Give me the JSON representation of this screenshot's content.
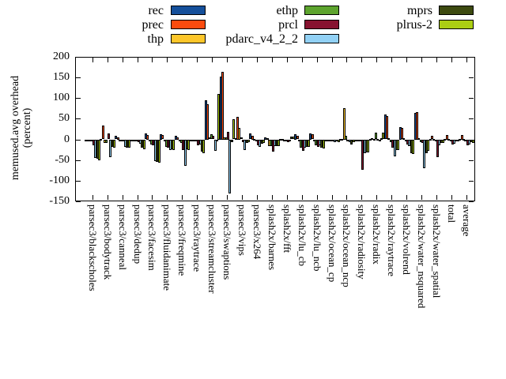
{
  "legend": {
    "columns": [
      [
        {
          "name": "rec",
          "color": "#15509b"
        },
        {
          "name": "prec",
          "color": "#fb4b0f"
        },
        {
          "name": "thp",
          "color": "#fdc62a"
        }
      ],
      [
        {
          "name": "ethp",
          "color": "#5da42e"
        },
        {
          "name": "prcl",
          "color": "#871330"
        },
        {
          "name": "pdarc_v4_2_2",
          "color": "#92d1f5"
        }
      ],
      [
        {
          "name": "mprs",
          "color": "#3d4a10"
        },
        {
          "name": "plrus-2",
          "color": "#abce14"
        }
      ]
    ]
  },
  "axes": {
    "ylabel_line1": "memused.avg overhead",
    "ylabel_line2": "(percent)"
  },
  "chart_data": {
    "type": "bar",
    "title": "",
    "xlabel": "",
    "ylabel": "memused.avg overhead (percent)",
    "ylim": [
      -150,
      200
    ],
    "yticks": [
      200,
      150,
      100,
      50,
      0,
      -50,
      -100,
      -150
    ],
    "grid": false,
    "legend_position": "top",
    "categories": [
      "parsec3/blackscholes",
      "parsec3/bodytrack",
      "parsec3/canneal",
      "parsec3/dedup",
      "parsec3/facesim",
      "parsec3/fluidanimate",
      "parsec3/freqmine",
      "parsec3/raytrace",
      "parsec3/streamcluster",
      "parsec3/swaptions",
      "parsec3/vips",
      "parsec3/x264",
      "splash2x/barnes",
      "splash2x/fft",
      "splash2x/lu_cb",
      "splash2x/lu_ncb",
      "splash2x/ocean_cp",
      "splash2x/ocean_ncp",
      "splash2x/radiosity",
      "splash2x/radix",
      "splash2x/raytrace",
      "splash2x/volrend",
      "splash2x/water_nsquared",
      "splash2x/water_spatial",
      "total",
      "average"
    ],
    "series": [
      {
        "name": "rec",
        "color": "#15509b",
        "values": [
          -1,
          2,
          8,
          -1,
          14,
          13,
          9,
          -1,
          95,
          153,
          3,
          14,
          5,
          2,
          13,
          15,
          -2,
          2,
          -3,
          2,
          60,
          30,
          65,
          2,
          2,
          2
        ]
      },
      {
        "name": "prec",
        "color": "#fb4b0f",
        "values": [
          -2,
          33,
          5,
          -1,
          11,
          10,
          5,
          -2,
          86,
          164,
          55,
          9,
          3,
          2,
          8,
          12,
          -2,
          2,
          -3,
          3,
          56,
          27,
          67,
          8,
          11,
          11
        ]
      },
      {
        "name": "thp",
        "color": "#fdc62a",
        "values": [
          -2,
          -8,
          -2,
          -2,
          -2,
          -2,
          -2,
          -2,
          4,
          5,
          28,
          2,
          -15,
          -2,
          -3,
          -3,
          -3,
          76,
          -4,
          2,
          3,
          3,
          3,
          2,
          2,
          2
        ]
      },
      {
        "name": "ethp",
        "color": "#5da42e",
        "values": [
          -3,
          -8,
          -2,
          -4,
          -12,
          -18,
          -8,
          -4,
          12,
          5,
          4,
          -3,
          -15,
          -3,
          -20,
          -14,
          -3,
          9,
          -4,
          16,
          -5,
          -3,
          -5,
          -3,
          -3,
          -2
        ]
      },
      {
        "name": "prcl",
        "color": "#871330",
        "values": [
          -14,
          14,
          -3,
          -6,
          -14,
          -20,
          -24,
          -14,
          8,
          19,
          -6,
          -13,
          -29,
          -6,
          -26,
          -18,
          -4,
          -4,
          -73,
          2,
          -20,
          -12,
          -8,
          -43,
          -12,
          -14
        ]
      },
      {
        "name": "pdarc_v4_2_2",
        "color": "#92d1f5",
        "values": [
          -44,
          -42,
          -18,
          -10,
          -52,
          -24,
          -63,
          -12,
          -26,
          -131,
          -24,
          -17,
          -15,
          -4,
          -20,
          -14,
          -5,
          -5,
          -33,
          -3,
          -40,
          -16,
          -69,
          -13,
          -10,
          -12
        ]
      },
      {
        "name": "mprs",
        "color": "#3d4a10",
        "values": [
          -46,
          -18,
          -20,
          -20,
          -54,
          -22,
          -22,
          -29,
          -4,
          -5,
          -8,
          -10,
          -15,
          6,
          -18,
          -20,
          -4,
          -11,
          -31,
          3,
          -24,
          -32,
          -32,
          -8,
          -4,
          -6
        ]
      },
      {
        "name": "plrus-2",
        "color": "#abce14",
        "values": [
          -50,
          -20,
          -19,
          -22,
          -56,
          -24,
          -24,
          -33,
          110,
          48,
          -6,
          -8,
          -15,
          6,
          -18,
          -21,
          -5,
          -6,
          -31,
          16,
          -24,
          -35,
          -27,
          -8,
          -4,
          -8
        ]
      }
    ]
  }
}
